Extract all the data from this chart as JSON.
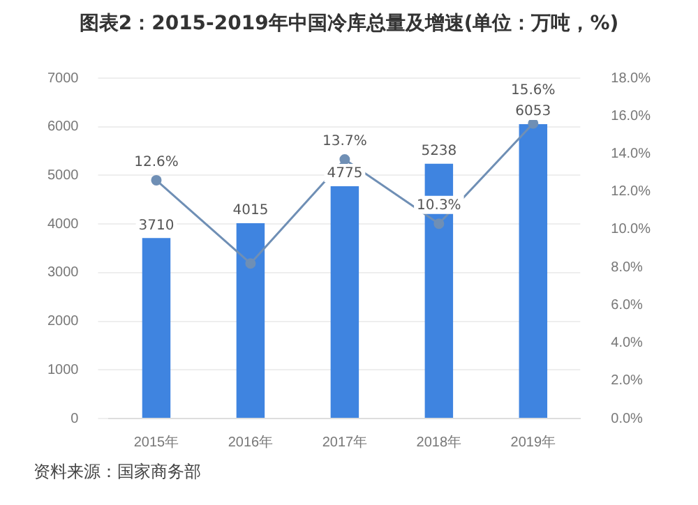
{
  "chart_data": {
    "type": "bar",
    "title": "图表2：2015-2019年中国冷库总量及增速(单位：万吨，%)",
    "categories": [
      "2015年",
      "2016年",
      "2017年",
      "2018年",
      "2019年"
    ],
    "series": [
      {
        "type": "bar",
        "color": "#3f84e0",
        "values": [
          3710,
          4015,
          4775,
          5238,
          6053
        ],
        "value_labels": [
          "3710",
          "4015",
          "4775",
          "5238",
          "6053"
        ]
      },
      {
        "type": "line",
        "axis": "y2",
        "color": "#6f8fb5",
        "marker": "circle",
        "values": [
          12.6,
          8.2,
          13.7,
          10.3,
          15.6
        ],
        "value_labels": [
          "12.6%",
          null,
          "13.7%",
          "10.3%",
          "15.6%"
        ]
      }
    ],
    "ylim": [
      0,
      7000
    ],
    "yticks": [
      0,
      1000,
      2000,
      3000,
      4000,
      5000,
      6000,
      7000
    ],
    "y2lim": [
      0,
      18
    ],
    "y2ticks": [
      {
        "value": 0,
        "label": "0.0%"
      },
      {
        "value": 2,
        "label": "2.0%"
      },
      {
        "value": 4,
        "label": "4.0%"
      },
      {
        "value": 6,
        "label": "6.0%"
      },
      {
        "value": 8,
        "label": "8.0%"
      },
      {
        "value": 10,
        "label": "10.0%"
      },
      {
        "value": 12,
        "label": "12.0%"
      },
      {
        "value": 14,
        "label": "14.0%"
      },
      {
        "value": 16,
        "label": "16.0%"
      },
      {
        "value": 18,
        "label": "18.0%"
      }
    ],
    "grid": "y",
    "legend": false,
    "annotations": [
      "资料来源：国家商务部"
    ]
  }
}
